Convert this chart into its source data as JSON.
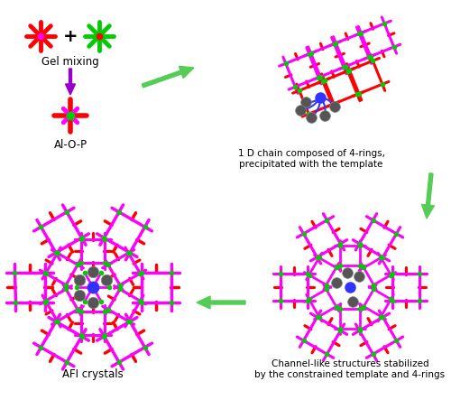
{
  "background_color": "#ffffff",
  "label_gel_mixing": "Gel mixing",
  "label_alop": "Al-O-P",
  "label_1d_chain": "1 D chain composed of 4-rings,\nprecipitated with the template",
  "label_afi": "AFI crystals",
  "label_channel": "Channel-like structures stabilized\nby the constrained template and 4-rings",
  "colors": {
    "red": "#ff0000",
    "green": "#00cc00",
    "magenta": "#ff00ff",
    "blue": "#3333ff",
    "purple": "#9900cc",
    "gray_dark": "#555555",
    "arrow_green": "#55cc55",
    "black": "#000000",
    "white": "#ffffff"
  },
  "figsize": [
    5.0,
    4.43
  ],
  "dpi": 100
}
